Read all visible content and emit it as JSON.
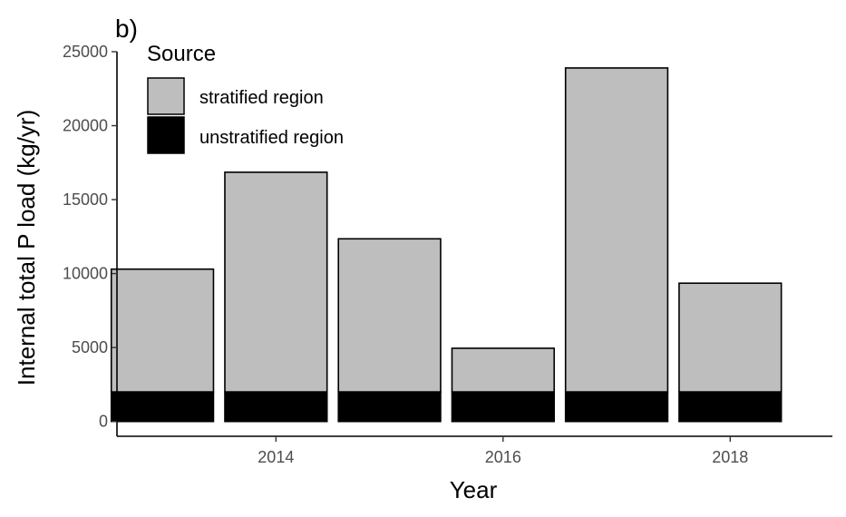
{
  "chart_data": {
    "type": "bar",
    "stacked": true,
    "panel_label": "b)",
    "xlabel": "Year",
    "ylabel": "Internal total P load (kg/yr)",
    "categories": [
      2013,
      2014,
      2015,
      2016,
      2017,
      2018
    ],
    "x_ticks": [
      2014,
      2016,
      2018
    ],
    "xlim": [
      2012.6,
      2018.9
    ],
    "y_ticks": [
      0,
      5000,
      10000,
      15000,
      20000,
      25000
    ],
    "ylim": [
      -1000,
      25000
    ],
    "grid": false,
    "legend": {
      "title": "Source",
      "placement": "top-left"
    },
    "series": [
      {
        "name": "unstratified region",
        "color": "#000000",
        "values": [
          2000,
          2000,
          2000,
          2000,
          2000,
          2000
        ]
      },
      {
        "name": "stratified region",
        "color": "#bebebe",
        "values": [
          8300,
          14850,
          10350,
          2950,
          21900,
          7350
        ]
      }
    ],
    "totals": [
      10300,
      16850,
      12350,
      4950,
      23900,
      9350
    ]
  }
}
